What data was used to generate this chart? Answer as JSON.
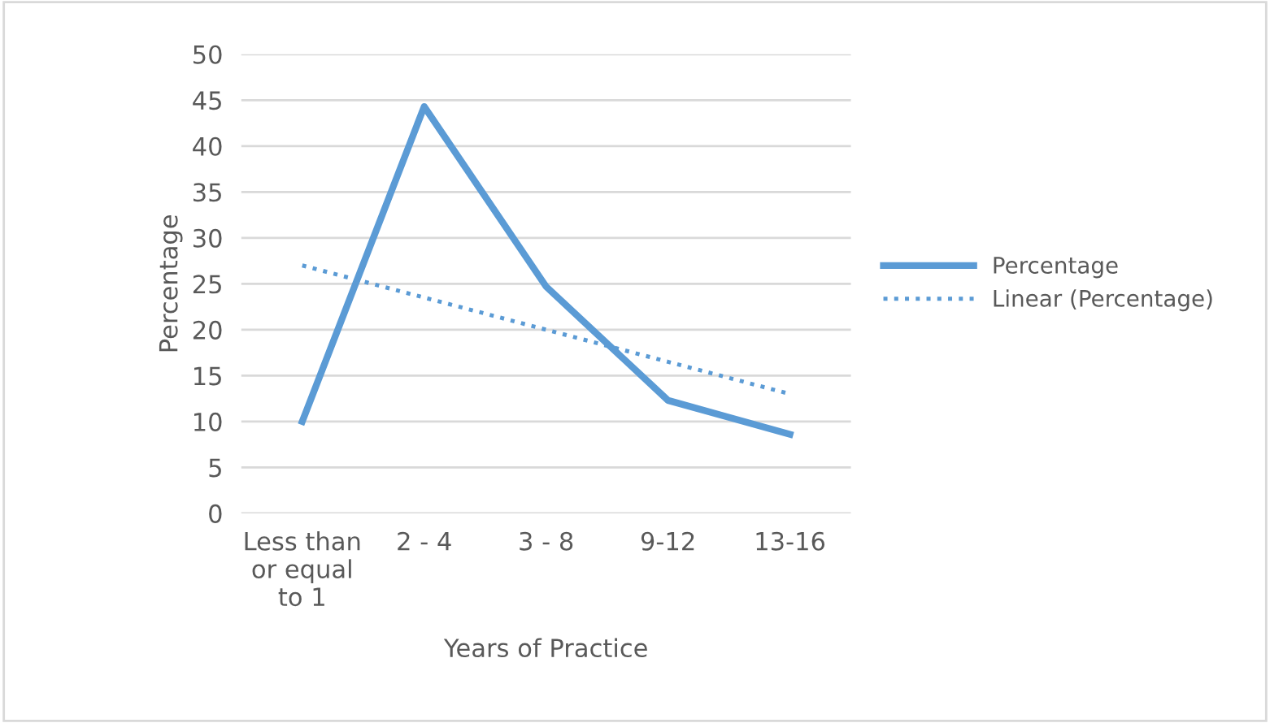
{
  "chart_data": {
    "type": "line",
    "xlabel": "Years of Practice",
    "ylabel": "Percentage",
    "categories": [
      "Less than\nor equal\nto 1",
      "2 - 4",
      "3 - 8",
      "9-12",
      "13-16"
    ],
    "series": [
      {
        "name": "Percentage",
        "color": "#5b9bd5",
        "values": [
          10,
          44.3,
          24.7,
          12.3,
          8.6
        ],
        "line_style": "solid"
      },
      {
        "name": "Linear (Percentage)",
        "color": "#5b9bd5",
        "values": [
          27,
          23.5,
          20,
          16.5,
          13
        ],
        "line_style": "dotted"
      }
    ],
    "ylim": [
      0,
      50
    ],
    "yticks": [
      0,
      5,
      10,
      15,
      20,
      25,
      30,
      35,
      40,
      45,
      50
    ],
    "grid": "y",
    "legend": "right"
  }
}
